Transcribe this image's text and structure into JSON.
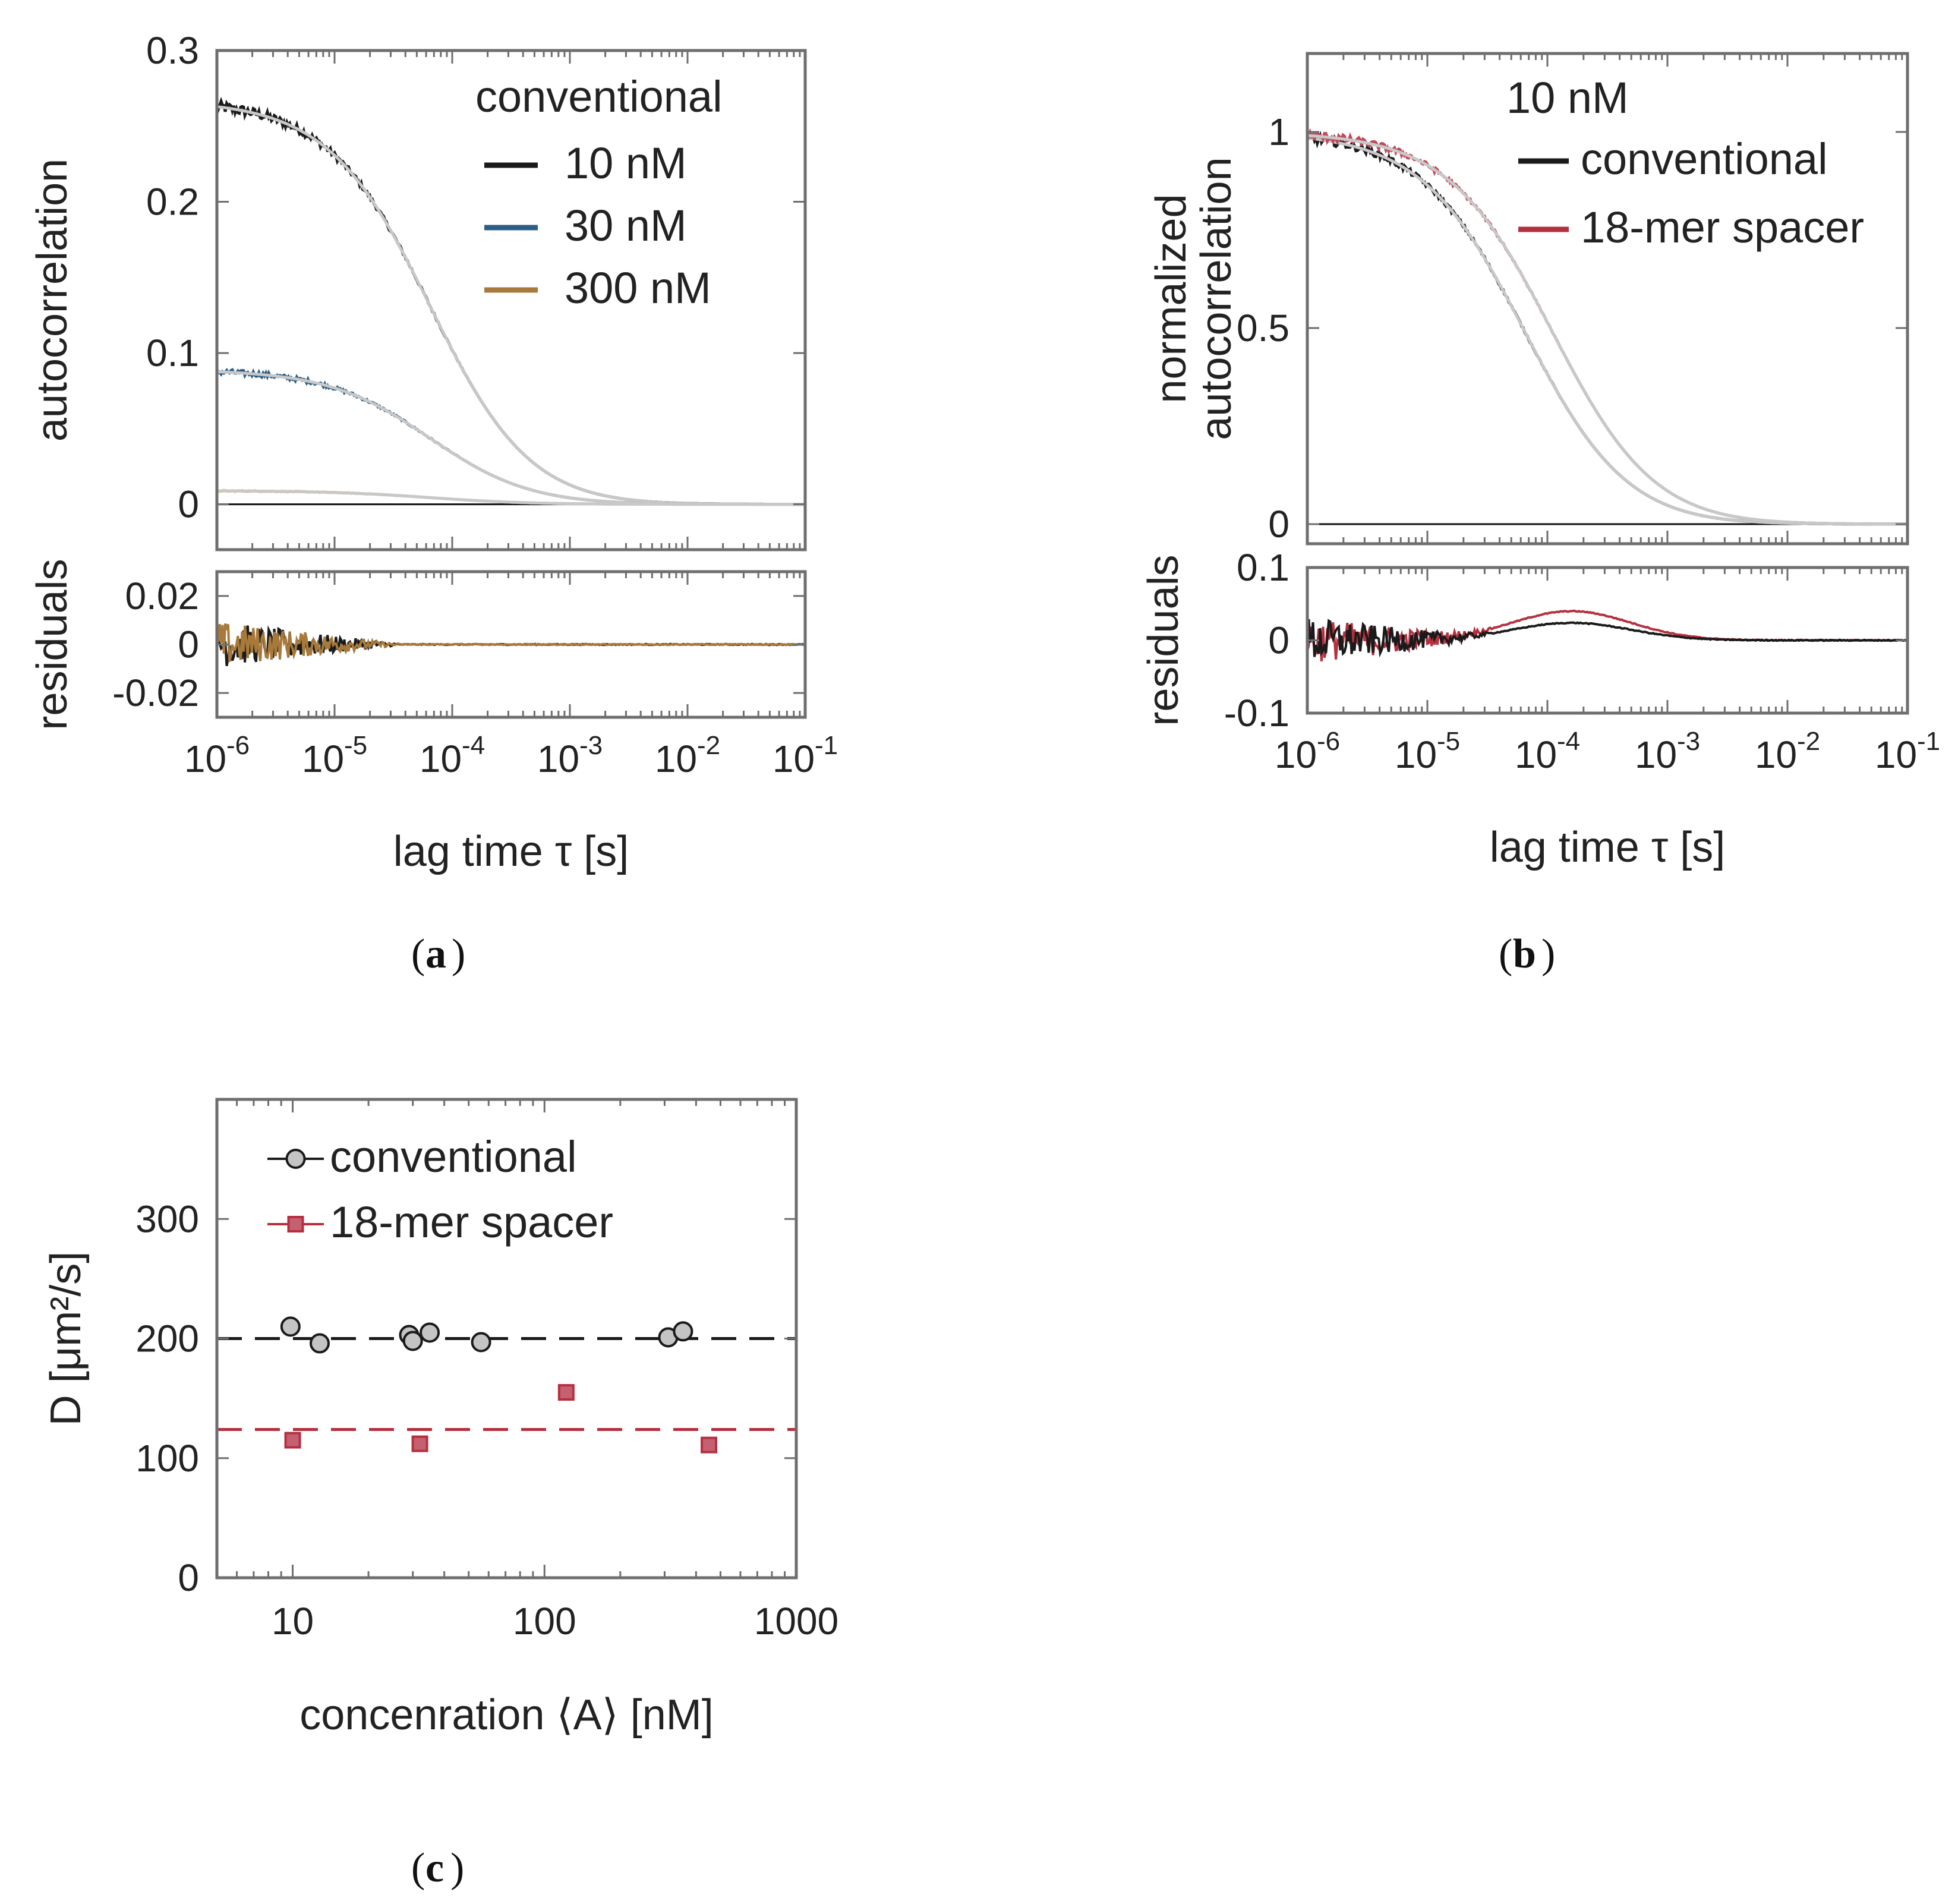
{
  "panel_labels": {
    "a": "a",
    "b": "b",
    "c": "c"
  },
  "chart_data": [
    {
      "id": "a",
      "type": "line",
      "xscale": "log",
      "xlabel": "lag time τ [s]",
      "xlim_exp": [
        -6,
        -1
      ],
      "xtick_exps": [
        "-6",
        "-5",
        "-4",
        "-3",
        "-2",
        "-1"
      ],
      "main": {
        "ylabel": "autocorrelation",
        "ylim": [
          -0.03,
          0.3
        ],
        "yticks": [
          0,
          0.1,
          0.2,
          0.3
        ],
        "ytick_labels": [
          "0",
          "0.1",
          "0.2",
          "0.3"
        ],
        "legend_title": "conventional",
        "legend_position": "top-right",
        "fit_color": "#c8c8c8",
        "series": [
          {
            "name": "10 nM",
            "color": "#1a1a1a",
            "G0": 0.267,
            "tau_d": 6.5e-05,
            "noise": 0.004
          },
          {
            "name": "30 nM",
            "color": "#2b5e86",
            "G0": 0.089,
            "tau_d": 6.5e-05,
            "noise": 0.002
          },
          {
            "name": "300 nM",
            "color": "#a77a3c",
            "line_color": "#f6c987",
            "G0": 0.009,
            "tau_d": 6.5e-05,
            "noise": 0.0005
          }
        ]
      },
      "residuals": {
        "ylabel": "residuals",
        "ylim": [
          -0.03,
          0.03
        ],
        "yticks": [
          -0.02,
          0,
          0.02
        ],
        "ytick_labels": [
          "-0.02",
          "0",
          "0.02"
        ],
        "line_colors": [
          "#1a1a1a",
          "#a77a3c"
        ]
      }
    },
    {
      "id": "b",
      "type": "line",
      "xscale": "log",
      "xlabel": "lag time τ [s]",
      "xlim_exp": [
        -6,
        -1
      ],
      "xtick_exps": [
        "-6",
        "-5",
        "-4",
        "-3",
        "-2",
        "-1"
      ],
      "main": {
        "ylabel": [
          "normalized",
          "autocorrelation"
        ],
        "ylim": [
          -0.05,
          1.2
        ],
        "yticks": [
          0,
          0.5,
          1
        ],
        "ytick_labels": [
          "0",
          "0.5",
          "1"
        ],
        "legend_title": "10 nM",
        "legend_position": "top-right",
        "fit_color": "#c8c8c8",
        "series": [
          {
            "name": "conventional",
            "color": "#1a1a1a",
            "G0": 1.0,
            "tau_d": 6.5e-05,
            "noise": 0.012
          },
          {
            "name": "18-mer spacer",
            "color": "#b5303f",
            "line_color": "#c04a5a",
            "G0": 1.0,
            "tau_d": 0.00011,
            "noise": 0.012
          }
        ]
      },
      "residuals": {
        "ylabel": "residuals",
        "ylim": [
          -0.1,
          0.1
        ],
        "yticks": [
          -0.1,
          0,
          0.1
        ],
        "ytick_labels": [
          "-0.1",
          "0",
          "0.1"
        ],
        "line_colors": [
          "#b5303f",
          "#1a1a1a"
        ]
      }
    },
    {
      "id": "c",
      "type": "scatter",
      "xscale": "log",
      "xlabel": "concenration ⟨A⟩ [nM]",
      "ylabel": "D [μm²/s]",
      "xlim": [
        5,
        1000
      ],
      "ylim": [
        0,
        400
      ],
      "xticks": [
        10,
        100,
        1000
      ],
      "xtick_labels": [
        "10",
        "100",
        "1000"
      ],
      "yticks": [
        0,
        100,
        200,
        300
      ],
      "ytick_labels": [
        "0",
        "100",
        "200",
        "300"
      ],
      "legend_position": "top-left",
      "series": [
        {
          "name": "conventional",
          "marker": "circle",
          "color": "#1a1a1a",
          "fill": "#c4c4c4",
          "mean": 200,
          "points": [
            [
              9.8,
              210
            ],
            [
              12.8,
              196
            ],
            [
              29,
              203
            ],
            [
              30,
              198
            ],
            [
              35,
              205
            ],
            [
              56,
              197
            ],
            [
              310,
              201
            ],
            [
              355,
              206
            ]
          ]
        },
        {
          "name": "18-mer spacer",
          "marker": "square",
          "color": "#b5303f",
          "fill": "#c56070",
          "mean": 124,
          "points": [
            [
              10,
              115
            ],
            [
              32,
              112
            ],
            [
              122,
              155
            ],
            [
              450,
              111
            ]
          ]
        }
      ]
    }
  ]
}
